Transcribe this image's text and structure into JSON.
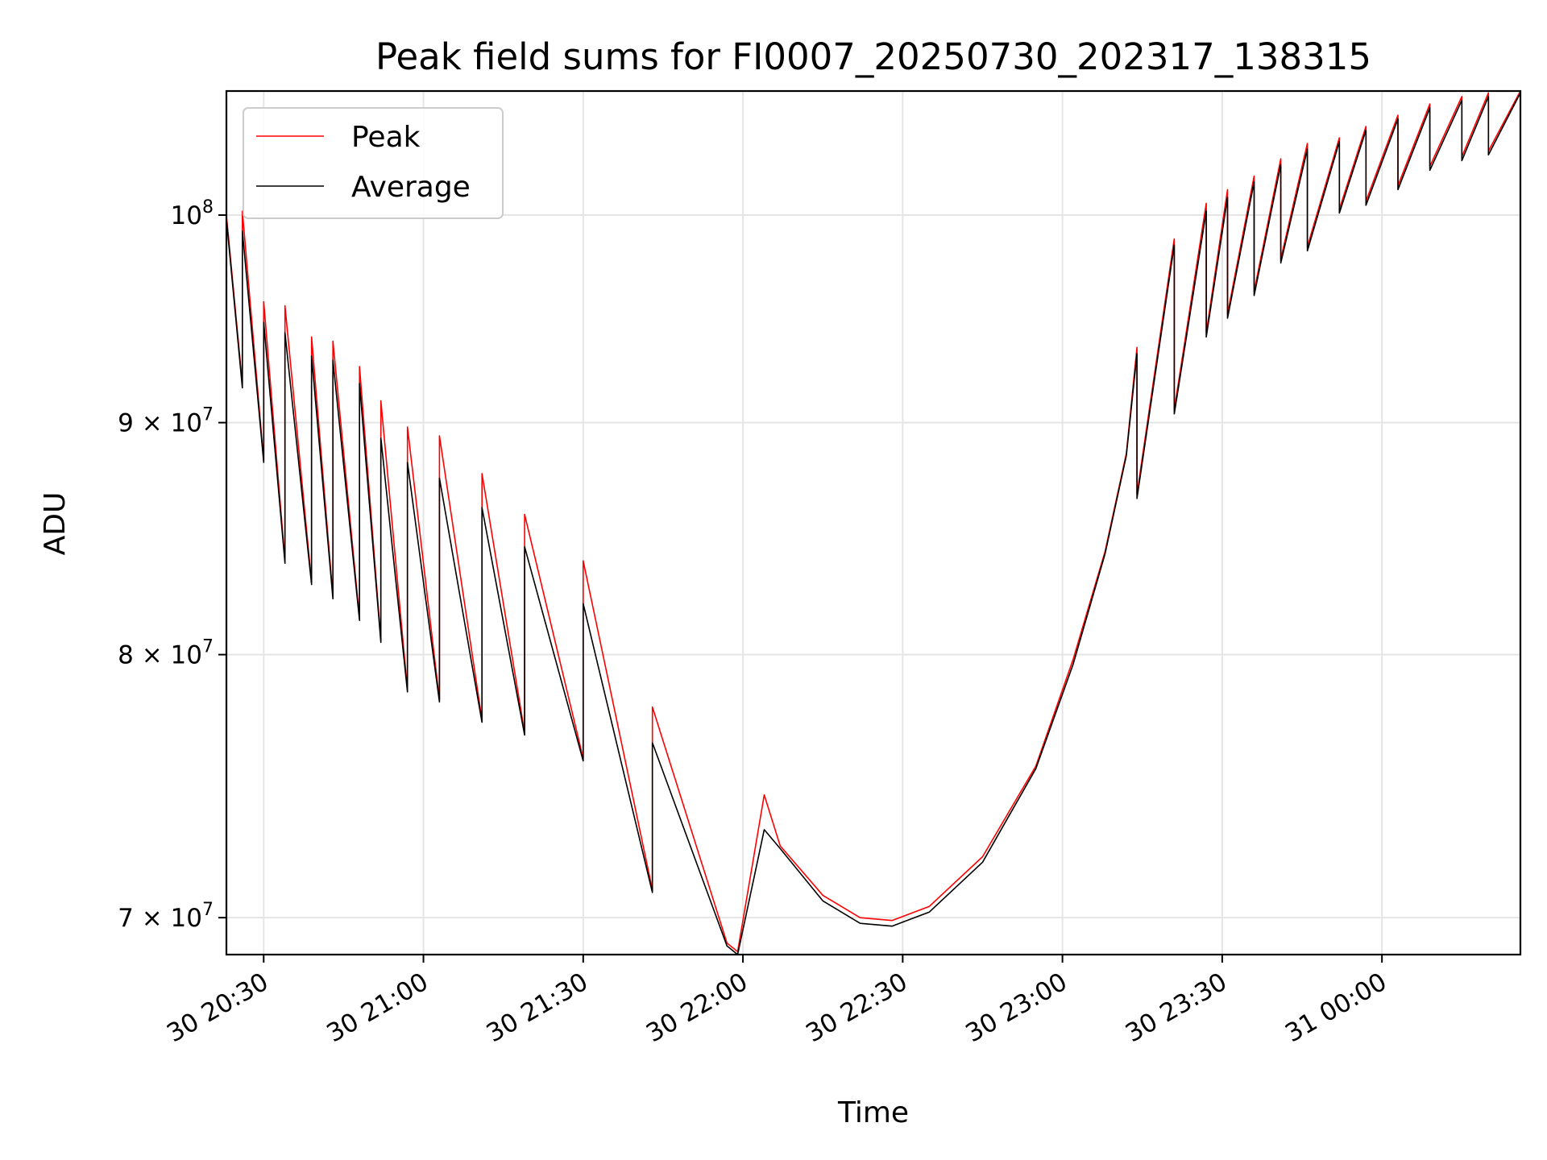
{
  "chart_data": {
    "type": "line",
    "title": "Peak field sums for FI0007_20250730_202317_138315",
    "xlabel": "Time",
    "ylabel": "ADU",
    "y_scale": "log",
    "grid": true,
    "legend_placement": "top-left",
    "xlim": [
      "2025-07-30 20:23",
      "2025-07-31 00:26"
    ],
    "ylim": [
      68700000,
      106500000
    ],
    "x_tick_labels": [
      "30 20:30",
      "30 21:00",
      "30 21:30",
      "30 22:00",
      "30 22:30",
      "30 23:00",
      "30 23:30",
      "31 00:00"
    ],
    "y_tick_labels": [
      {
        "value": 100000000,
        "base": "10",
        "exp": "8"
      },
      {
        "value": 90000000,
        "base": "9 × 10",
        "exp": "7"
      },
      {
        "value": 80000000,
        "base": "8 × 10",
        "exp": "7"
      },
      {
        "value": 70000000,
        "base": "7 × 10",
        "exp": "7"
      }
    ],
    "series": [
      {
        "name": "Peak",
        "color": "#ff0000",
        "points": [
          [
            "20:23",
            100000000
          ],
          [
            "20:26",
            91800000
          ],
          [
            "20:26",
            100200000
          ],
          [
            "20:30",
            88300000
          ],
          [
            "20:30",
            95700000
          ],
          [
            "20:34",
            83900000
          ],
          [
            "20:34",
            95500000
          ],
          [
            "20:39",
            83000000
          ],
          [
            "20:39",
            94000000
          ],
          [
            "20:43",
            82400000
          ],
          [
            "20:43",
            93800000
          ],
          [
            "20:48",
            81500000
          ],
          [
            "20:48",
            92600000
          ],
          [
            "20:52",
            80600000
          ],
          [
            "20:52",
            91000000
          ],
          [
            "20:57",
            78600000
          ],
          [
            "20:57",
            89800000
          ],
          [
            "21:03",
            78200000
          ],
          [
            "21:03",
            89400000
          ],
          [
            "21:11",
            77400000
          ],
          [
            "21:11",
            87700000
          ],
          [
            "21:19",
            76900000
          ],
          [
            "21:19",
            85900000
          ],
          [
            "21:30",
            75900000
          ],
          [
            "21:30",
            83900000
          ],
          [
            "21:43",
            71000000
          ],
          [
            "21:43",
            77900000
          ],
          [
            "21:57",
            69100000
          ],
          [
            "21:59",
            68800000
          ],
          [
            "22:04",
            74500000
          ],
          [
            "22:07",
            72600000
          ],
          [
            "22:15",
            70800000
          ],
          [
            "22:22",
            70000000
          ],
          [
            "22:28",
            69900000
          ],
          [
            "22:35",
            70400000
          ],
          [
            "22:45",
            72200000
          ],
          [
            "22:55",
            75600000
          ],
          [
            "23:02",
            79800000
          ],
          [
            "23:08",
            84300000
          ],
          [
            "23:12",
            88600000
          ],
          [
            "23:14",
            93500000
          ],
          [
            "23:14",
            86800000
          ],
          [
            "23:21",
            98800000
          ],
          [
            "23:21",
            90600000
          ],
          [
            "23:27",
            100600000
          ],
          [
            "23:27",
            94200000
          ],
          [
            "23:31",
            101300000
          ],
          [
            "23:31",
            95100000
          ],
          [
            "23:36",
            102000000
          ],
          [
            "23:36",
            96200000
          ],
          [
            "23:41",
            102900000
          ],
          [
            "23:41",
            97800000
          ],
          [
            "23:46",
            103700000
          ],
          [
            "23:46",
            98400000
          ],
          [
            "23:52",
            104000000
          ],
          [
            "23:52",
            100300000
          ],
          [
            "23:57",
            104600000
          ],
          [
            "23:57",
            100700000
          ],
          [
            "00:03",
            105200000
          ],
          [
            "00:03",
            101500000
          ],
          [
            "00:09",
            105800000
          ],
          [
            "00:09",
            102500000
          ],
          [
            "00:15",
            106200000
          ],
          [
            "00:15",
            103000000
          ],
          [
            "00:20",
            106400000
          ],
          [
            "00:20",
            103300000
          ],
          [
            "00:26",
            106500000
          ]
        ]
      },
      {
        "name": "Average",
        "color": "#000000",
        "points": [
          [
            "20:23",
            99800000
          ],
          [
            "20:26",
            91600000
          ],
          [
            "20:26",
            99200000
          ],
          [
            "20:30",
            88200000
          ],
          [
            "20:30",
            94700000
          ],
          [
            "20:34",
            83800000
          ],
          [
            "20:34",
            94200000
          ],
          [
            "20:39",
            82900000
          ],
          [
            "20:39",
            93100000
          ],
          [
            "20:43",
            82300000
          ],
          [
            "20:43",
            92900000
          ],
          [
            "20:48",
            81400000
          ],
          [
            "20:48",
            91800000
          ],
          [
            "20:52",
            80500000
          ],
          [
            "20:52",
            89300000
          ],
          [
            "20:57",
            78500000
          ],
          [
            "20:57",
            88200000
          ],
          [
            "21:03",
            78100000
          ],
          [
            "21:03",
            87500000
          ],
          [
            "21:11",
            77300000
          ],
          [
            "21:11",
            86200000
          ],
          [
            "21:19",
            76800000
          ],
          [
            "21:19",
            84500000
          ],
          [
            "21:30",
            75800000
          ],
          [
            "21:30",
            82100000
          ],
          [
            "21:43",
            70900000
          ],
          [
            "21:43",
            76500000
          ],
          [
            "21:57",
            69000000
          ],
          [
            "21:59",
            68700000
          ],
          [
            "22:04",
            73200000
          ],
          [
            "22:07",
            72500000
          ],
          [
            "22:15",
            70600000
          ],
          [
            "22:22",
            69800000
          ],
          [
            "22:28",
            69700000
          ],
          [
            "22:35",
            70200000
          ],
          [
            "22:45",
            72000000
          ],
          [
            "22:55",
            75500000
          ],
          [
            "23:02",
            79600000
          ],
          [
            "23:08",
            84200000
          ],
          [
            "23:12",
            88500000
          ],
          [
            "23:14",
            93200000
          ],
          [
            "23:14",
            86600000
          ],
          [
            "23:21",
            98500000
          ],
          [
            "23:21",
            90400000
          ],
          [
            "23:27",
            100200000
          ],
          [
            "23:27",
            94000000
          ],
          [
            "23:31",
            100900000
          ],
          [
            "23:31",
            94900000
          ],
          [
            "23:36",
            101700000
          ],
          [
            "23:36",
            96000000
          ],
          [
            "23:41",
            102600000
          ],
          [
            "23:41",
            97600000
          ],
          [
            "23:46",
            103400000
          ],
          [
            "23:46",
            98200000
          ],
          [
            "23:52",
            103800000
          ],
          [
            "23:52",
            100100000
          ],
          [
            "23:57",
            104400000
          ],
          [
            "23:57",
            100500000
          ],
          [
            "00:03",
            105000000
          ],
          [
            "00:03",
            101300000
          ],
          [
            "00:09",
            105600000
          ],
          [
            "00:09",
            102300000
          ],
          [
            "00:15",
            106000000
          ],
          [
            "00:15",
            102800000
          ],
          [
            "00:20",
            106200000
          ],
          [
            "00:20",
            103100000
          ],
          [
            "00:26",
            106400000
          ]
        ]
      }
    ]
  }
}
